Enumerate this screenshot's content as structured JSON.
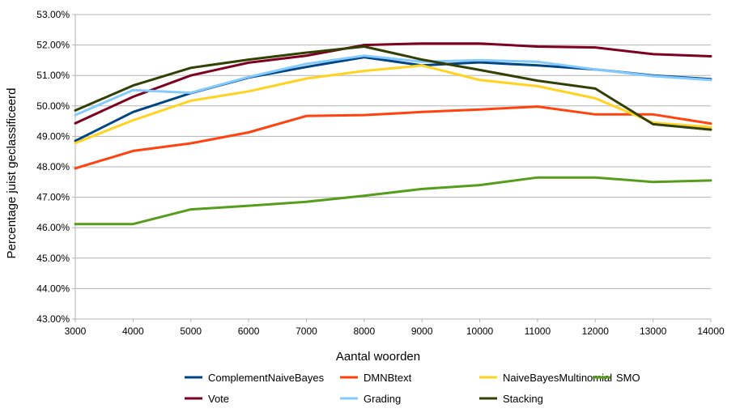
{
  "chart_data": {
    "type": "line",
    "title": "",
    "xlabel": "Aantal woorden",
    "ylabel": "Percentage juist geclassificeerd",
    "x": [
      3000,
      4000,
      5000,
      6000,
      7000,
      8000,
      9000,
      10000,
      11000,
      12000,
      13000,
      14000
    ],
    "xlim": [
      3000,
      14000
    ],
    "ylim": [
      43.0,
      53.0
    ],
    "y_ticks": [
      "43.00%",
      "44.00%",
      "45.00%",
      "46.00%",
      "47.00%",
      "48.00%",
      "49.00%",
      "50.00%",
      "51.00%",
      "52.00%",
      "53.00%"
    ],
    "x_ticks": [
      "3000",
      "4000",
      "5000",
      "6000",
      "7000",
      "8000",
      "9000",
      "10000",
      "11000",
      "12000",
      "13000",
      "14000"
    ],
    "grid": true,
    "legend_position": "bottom",
    "series": [
      {
        "name": "ComplementNaiveBayes",
        "color": "#004586",
        "values": [
          48.85,
          49.8,
          50.42,
          50.93,
          51.28,
          51.6,
          51.33,
          51.43,
          51.33,
          51.2,
          51.0,
          50.88
        ]
      },
      {
        "name": "DMNBtext",
        "color": "#ff420e",
        "values": [
          47.95,
          48.52,
          48.77,
          49.13,
          49.67,
          49.7,
          49.8,
          49.88,
          49.98,
          49.72,
          49.72,
          49.42
        ]
      },
      {
        "name": "NaiveBayesMultinomial",
        "color": "#ffd320",
        "values": [
          48.78,
          49.53,
          50.17,
          50.48,
          50.9,
          51.15,
          51.33,
          50.85,
          50.65,
          50.25,
          49.45,
          49.3
        ]
      },
      {
        "name": "SMO",
        "color": "#579d1c",
        "values": [
          46.12,
          46.12,
          46.6,
          46.72,
          46.85,
          47.05,
          47.27,
          47.4,
          47.65,
          47.65,
          47.5,
          47.55
        ]
      },
      {
        "name": "Vote",
        "color": "#7e0021",
        "values": [
          49.43,
          50.3,
          51.0,
          51.42,
          51.65,
          52.0,
          52.05,
          52.05,
          51.95,
          51.92,
          51.7,
          51.63
        ]
      },
      {
        "name": "Grading",
        "color": "#83caff",
        "values": [
          49.7,
          50.52,
          50.43,
          50.95,
          51.38,
          51.65,
          51.45,
          51.5,
          51.45,
          51.2,
          50.98,
          50.85
        ]
      },
      {
        "name": "Stacking",
        "color": "#314004",
        "values": [
          49.85,
          50.67,
          51.25,
          51.52,
          51.75,
          51.95,
          51.52,
          51.18,
          50.83,
          50.57,
          49.4,
          49.22
        ]
      }
    ]
  }
}
